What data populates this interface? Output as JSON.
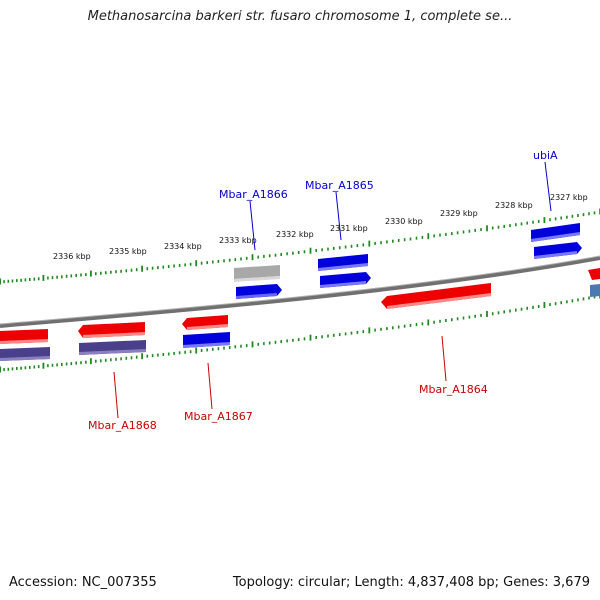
{
  "title": "Methanosarcina barkeri str. fusaro chromosome 1, complete se...",
  "footer": {
    "accession": "Accession: NC_007355",
    "topology": "Topology: circular; Length: 4,837,408 bp; Genes: 3,679"
  },
  "scale_labels": [
    "2336 kbp",
    "2335 kbp",
    "2334 kbp",
    "2333 kbp",
    "2332 kbp",
    "2331 kbp",
    "2330 kbp",
    "2329 kbp",
    "2328 kbp",
    "2327 kbp"
  ],
  "gene_labels": [
    {
      "text": "Mbar_A1866",
      "strand": "forward"
    },
    {
      "text": "Mbar_A1865",
      "strand": "forward"
    },
    {
      "text": "ubiA",
      "strand": "forward"
    },
    {
      "text": "Mbar_A1868",
      "strand": "reverse"
    },
    {
      "text": "Mbar_A1867",
      "strand": "reverse"
    },
    {
      "text": "Mbar_A1864",
      "strand": "reverse"
    }
  ],
  "colors": {
    "forward_label": "#0000cc",
    "reverse_label": "#cc0000",
    "red_gene": "#ee0000",
    "blue_gene": "#0000dd",
    "purple_gene": "#4a3f8a",
    "grey_gene": "#aaaaaa",
    "steel_gene": "#4a7ab0",
    "backbone": "#808080",
    "tick": "#1f8a1f"
  }
}
